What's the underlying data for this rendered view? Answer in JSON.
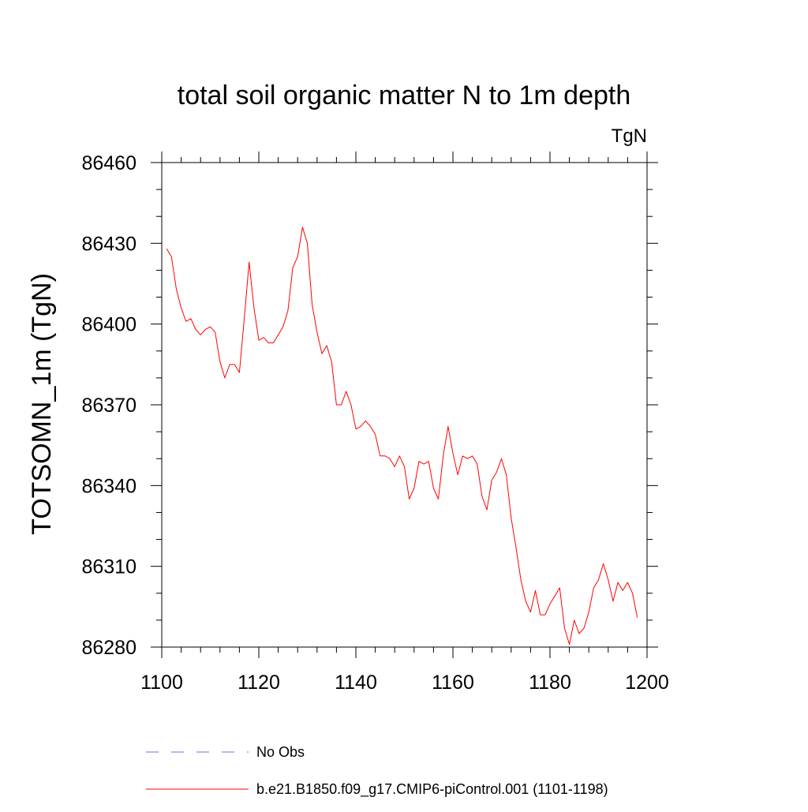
{
  "chart_data": {
    "type": "line",
    "title": "total soil organic matter N to 1m depth",
    "units": "TgN",
    "ylabel": "TOTSOMN_1m  (TgN)",
    "xlabel": "",
    "xlim": [
      1100,
      1200
    ],
    "ylim": [
      86280,
      86460
    ],
    "x_major_ticks": [
      1100,
      1120,
      1140,
      1160,
      1180,
      1200
    ],
    "x_tick_labels": [
      "1100",
      "1120",
      "1140",
      "1160",
      "1180",
      "1200"
    ],
    "x_minor_step": 4,
    "y_major_ticks": [
      86280,
      86310,
      86340,
      86370,
      86400,
      86430,
      86460
    ],
    "y_tick_labels": [
      "86280",
      "86310",
      "86340",
      "86370",
      "86400",
      "86430",
      "86460"
    ],
    "y_minor_step": 10,
    "grid": false,
    "legend_position": "bottom",
    "series": [
      {
        "name": "No Obs",
        "color": "#7b68ee",
        "dash": "dashed",
        "x": [],
        "values": []
      },
      {
        "name": "b.e21.B1850.f09_g17.CMIP6-piControl.001 (1101-1198)",
        "color": "#ff0000",
        "dash": "solid",
        "x": [
          1101,
          1102,
          1103,
          1104,
          1105,
          1106,
          1107,
          1108,
          1109,
          1110,
          1111,
          1112,
          1113,
          1114,
          1115,
          1116,
          1117,
          1118,
          1119,
          1120,
          1121,
          1122,
          1123,
          1124,
          1125,
          1126,
          1127,
          1128,
          1129,
          1130,
          1131,
          1132,
          1133,
          1134,
          1135,
          1136,
          1137,
          1138,
          1139,
          1140,
          1141,
          1142,
          1143,
          1144,
          1145,
          1146,
          1147,
          1148,
          1149,
          1150,
          1151,
          1152,
          1153,
          1154,
          1155,
          1156,
          1157,
          1158,
          1159,
          1160,
          1161,
          1162,
          1163,
          1164,
          1165,
          1166,
          1167,
          1168,
          1169,
          1170,
          1171,
          1172,
          1173,
          1174,
          1175,
          1176,
          1177,
          1178,
          1179,
          1180,
          1181,
          1182,
          1183,
          1184,
          1185,
          1186,
          1187,
          1188,
          1189,
          1190,
          1191,
          1192,
          1193,
          1194,
          1195,
          1196,
          1197,
          1198
        ],
        "values": [
          86428,
          86425,
          86413,
          86406,
          86401,
          86402,
          86398,
          86396,
          86398,
          86399,
          86397,
          86386,
          86380,
          86385,
          86385,
          86382,
          86402,
          86423,
          86406,
          86394,
          86395,
          86393,
          86393,
          86396,
          86399,
          86405,
          86421,
          86425,
          86436,
          86430,
          86407,
          86397,
          86389,
          86392,
          86386,
          86370,
          86370,
          86375,
          86370,
          86361,
          86362,
          86364,
          86362,
          86359,
          86351,
          86351,
          86350,
          86347,
          86351,
          86347,
          86335,
          86339,
          86349,
          86348,
          86349,
          86339,
          86335,
          86351,
          86362,
          86352,
          86344,
          86351,
          86350,
          86351,
          86348,
          86336,
          86331,
          86342,
          86345,
          86350,
          86344,
          86328,
          86317,
          86305,
          86297,
          86293,
          86301,
          86292,
          86292,
          86296,
          86299,
          86302,
          86287,
          86281,
          86290,
          86285,
          86287,
          86293,
          86302,
          86305,
          86311,
          86305,
          86297,
          86304,
          86301,
          86304,
          86300,
          86291
        ]
      }
    ]
  }
}
